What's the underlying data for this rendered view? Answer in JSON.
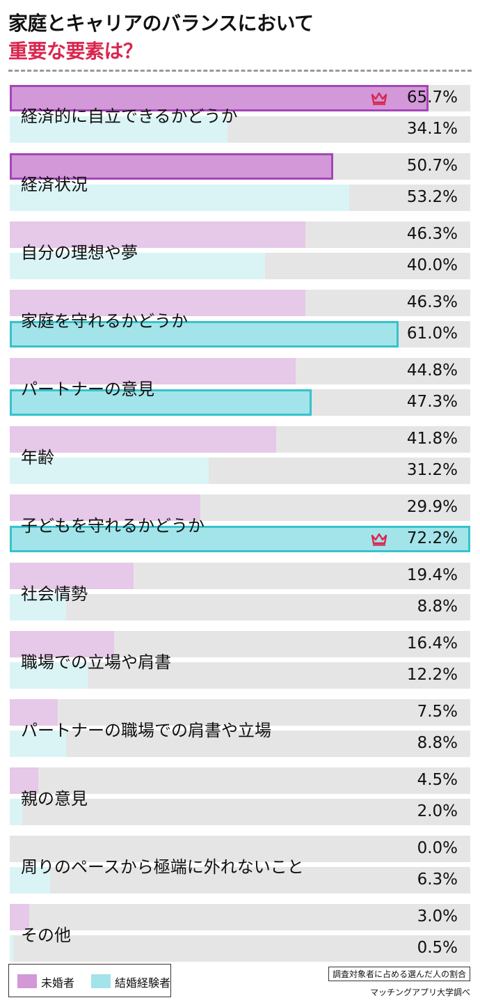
{
  "title": {
    "line1": "家庭とキャリアのバランスにおいて",
    "line2": "重要な要素は？"
  },
  "colors": {
    "unmarried": "#e6c8e8",
    "unmarried_highlight": "#d298d8",
    "unmarried_border": "#a446b6",
    "married": "#daf4f6",
    "married_highlight": "#a2e4ea",
    "married_border": "#36c2cc",
    "track": "#e5e5e5",
    "crown": "#d9264f"
  },
  "chart_data": {
    "type": "bar",
    "orientation": "horizontal",
    "xlim": [
      0,
      72.2
    ],
    "categories": [
      "経済的に自立できるかどうか",
      "経済状況",
      "自分の理想や夢",
      "家庭を守れるかどうか",
      "パートナーの意見",
      "年齢",
      "子どもを守れるかどうか",
      "社会情勢",
      "職場での立場や肩書",
      "パートナーの職場での肩書や立場",
      "親の意見",
      "周りのペースから極端に外れないこと",
      "その他"
    ],
    "series": [
      {
        "name": "未婚者",
        "values": [
          65.7,
          50.7,
          46.3,
          46.3,
          44.8,
          41.8,
          29.9,
          19.4,
          16.4,
          7.5,
          4.5,
          0.0,
          3.0
        ],
        "labels": [
          "65.7%",
          "50.7%",
          "46.3%",
          "46.3%",
          "44.8%",
          "41.8%",
          "29.9%",
          "19.4%",
          "16.4%",
          "7.5%",
          "4.5%",
          "0.0%",
          "3.0%"
        ],
        "highlighted": [
          true,
          true,
          false,
          false,
          false,
          false,
          false,
          false,
          false,
          false,
          false,
          false,
          false
        ],
        "top": 0
      },
      {
        "name": "結婚経験者",
        "values": [
          34.1,
          53.2,
          40.0,
          61.0,
          47.3,
          31.2,
          72.2,
          8.8,
          12.2,
          8.8,
          2.0,
          6.3,
          0.5
        ],
        "labels": [
          "34.1%",
          "53.2%",
          "40.0%",
          "61.0%",
          "47.3%",
          "31.2%",
          "72.2%",
          "8.8%",
          "12.2%",
          "8.8%",
          "2.0%",
          "6.3%",
          "0.5%"
        ],
        "highlighted": [
          false,
          false,
          false,
          true,
          true,
          false,
          true,
          false,
          false,
          false,
          false,
          false,
          false
        ],
        "top": 6
      }
    ],
    "legend": {
      "position": "bottom-left"
    }
  },
  "crown_icon": "crown-icon",
  "legend": {
    "unmarried": "未婚者",
    "married": "結婚経験者"
  },
  "note": "調査対象者に占める選んだ人の割合",
  "source": "マッチングアプリ大学調べ"
}
